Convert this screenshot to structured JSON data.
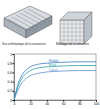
{
  "chart_data": {
    "type": "line",
    "annotations": [
      "Vue schématique de la couverture",
      "Maillage de la structure"
    ],
    "x": [
      0,
      5,
      10,
      15,
      20,
      30,
      40,
      60,
      80,
      100
    ],
    "series": [
      {
        "name": "Modèle",
        "color": "#3a7bbf",
        "values": [
          0,
          0.35,
          0.55,
          0.66,
          0.72,
          0.78,
          0.8,
          0.82,
          0.83,
          0.83
        ]
      },
      {
        "name": "Essai",
        "color": "#2aa0a0",
        "values": [
          0,
          0.3,
          0.48,
          0.58,
          0.64,
          0.7,
          0.72,
          0.74,
          0.75,
          0.75
        ]
      },
      {
        "name": "Calcul",
        "color": "#5a8fd0",
        "values": [
          0,
          0.22,
          0.38,
          0.47,
          0.53,
          0.58,
          0.61,
          0.63,
          0.64,
          0.64
        ]
      }
    ],
    "xlim": [
      0,
      100
    ],
    "xticks": [
      0,
      20,
      40,
      60,
      80,
      100
    ],
    "ylim": [
      0,
      1
    ],
    "yticks": [
      0,
      0.2,
      0.4,
      0.6,
      0.8,
      1
    ],
    "grid": false
  }
}
